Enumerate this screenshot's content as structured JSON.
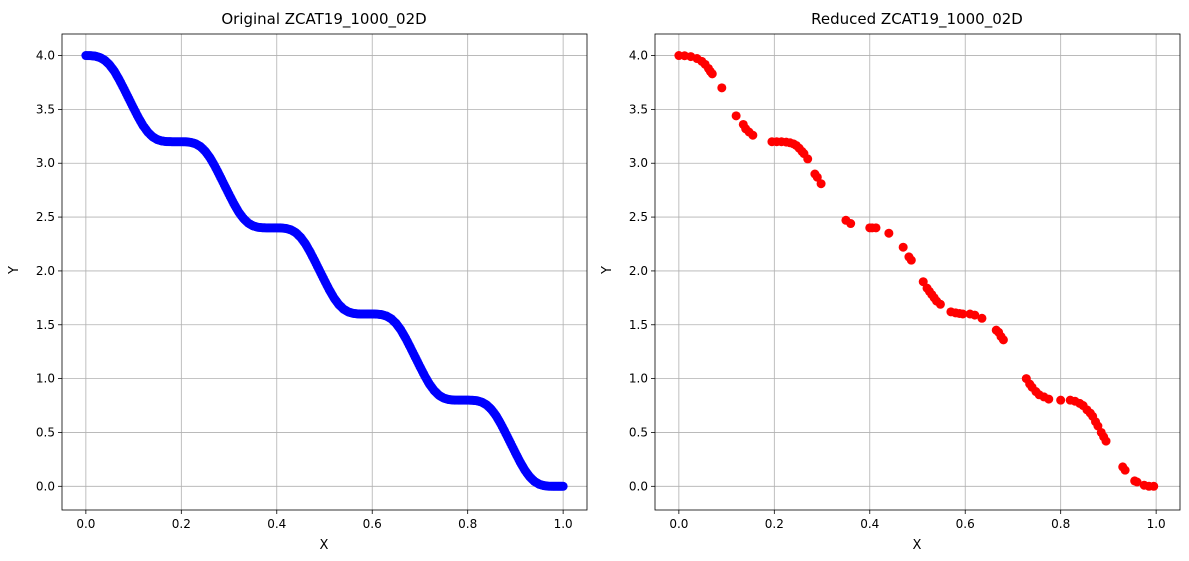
{
  "chart_data": [
    {
      "type": "scatter",
      "title": "Original ZCAT19_1000_02D",
      "xlabel": "X",
      "ylabel": "Y",
      "xlim": [
        -0.05,
        1.05
      ],
      "ylim": [
        -0.22,
        4.2
      ],
      "xticks": [
        "0.0",
        "0.2",
        "0.4",
        "0.6",
        "0.8",
        "1.0"
      ],
      "yticks": [
        "0.0",
        "0.5",
        "1.0",
        "1.5",
        "2.0",
        "2.5",
        "3.0",
        "3.5",
        "4.0"
      ],
      "grid": true,
      "series": [
        {
          "color": "#0000ff",
          "points": [
            [
              0.0,
              4.0
            ],
            [
              0.01,
              3.999
            ],
            [
              0.02,
              3.994
            ],
            [
              0.03,
              3.981
            ],
            [
              0.04,
              3.955
            ],
            [
              0.05,
              3.912
            ],
            [
              0.06,
              3.852
            ],
            [
              0.07,
              3.775
            ],
            [
              0.08,
              3.689
            ],
            [
              0.09,
              3.6
            ],
            [
              0.1,
              3.511
            ],
            [
              0.11,
              3.425
            ],
            [
              0.12,
              3.348
            ],
            [
              0.13,
              3.288
            ],
            [
              0.14,
              3.245
            ],
            [
              0.15,
              3.219
            ],
            [
              0.16,
              3.206
            ],
            [
              0.17,
              3.201
            ],
            [
              0.18,
              3.2
            ],
            [
              0.19,
              3.2
            ],
            [
              0.2,
              3.2
            ],
            [
              0.21,
              3.199
            ],
            [
              0.22,
              3.194
            ],
            [
              0.23,
              3.181
            ],
            [
              0.24,
              3.155
            ],
            [
              0.25,
              3.112
            ],
            [
              0.26,
              3.052
            ],
            [
              0.27,
              2.975
            ],
            [
              0.28,
              2.889
            ],
            [
              0.29,
              2.8
            ],
            [
              0.3,
              2.711
            ],
            [
              0.31,
              2.625
            ],
            [
              0.32,
              2.548
            ],
            [
              0.33,
              2.488
            ],
            [
              0.34,
              2.445
            ],
            [
              0.35,
              2.419
            ],
            [
              0.36,
              2.406
            ],
            [
              0.37,
              2.401
            ],
            [
              0.38,
              2.4
            ],
            [
              0.39,
              2.4
            ],
            [
              0.4,
              2.4
            ],
            [
              0.41,
              2.399
            ],
            [
              0.42,
              2.394
            ],
            [
              0.43,
              2.381
            ],
            [
              0.44,
              2.355
            ],
            [
              0.45,
              2.312
            ],
            [
              0.46,
              2.252
            ],
            [
              0.47,
              2.175
            ],
            [
              0.48,
              2.089
            ],
            [
              0.49,
              2.0
            ],
            [
              0.5,
              1.911
            ],
            [
              0.51,
              1.825
            ],
            [
              0.52,
              1.748
            ],
            [
              0.53,
              1.688
            ],
            [
              0.54,
              1.645
            ],
            [
              0.55,
              1.619
            ],
            [
              0.56,
              1.606
            ],
            [
              0.57,
              1.601
            ],
            [
              0.58,
              1.6
            ],
            [
              0.59,
              1.6
            ],
            [
              0.6,
              1.6
            ],
            [
              0.61,
              1.599
            ],
            [
              0.62,
              1.594
            ],
            [
              0.63,
              1.581
            ],
            [
              0.64,
              1.555
            ],
            [
              0.65,
              1.512
            ],
            [
              0.66,
              1.452
            ],
            [
              0.67,
              1.375
            ],
            [
              0.68,
              1.289
            ],
            [
              0.69,
              1.2
            ],
            [
              0.7,
              1.111
            ],
            [
              0.71,
              1.025
            ],
            [
              0.72,
              0.948
            ],
            [
              0.73,
              0.888
            ],
            [
              0.74,
              0.845
            ],
            [
              0.75,
              0.819
            ],
            [
              0.76,
              0.806
            ],
            [
              0.77,
              0.801
            ],
            [
              0.78,
              0.8
            ],
            [
              0.79,
              0.8
            ],
            [
              0.8,
              0.8
            ],
            [
              0.81,
              0.799
            ],
            [
              0.82,
              0.794
            ],
            [
              0.83,
              0.781
            ],
            [
              0.84,
              0.755
            ],
            [
              0.85,
              0.712
            ],
            [
              0.86,
              0.652
            ],
            [
              0.87,
              0.575
            ],
            [
              0.88,
              0.489
            ],
            [
              0.89,
              0.4
            ],
            [
              0.9,
              0.311
            ],
            [
              0.91,
              0.225
            ],
            [
              0.92,
              0.148
            ],
            [
              0.93,
              0.088
            ],
            [
              0.94,
              0.045
            ],
            [
              0.95,
              0.019
            ],
            [
              0.96,
              0.006
            ],
            [
              0.97,
              0.001
            ],
            [
              0.98,
              0.0
            ],
            [
              0.99,
              0.0
            ],
            [
              1.0,
              0.0
            ]
          ]
        }
      ]
    },
    {
      "type": "scatter",
      "title": "Reduced ZCAT19_1000_02D",
      "xlabel": "X",
      "ylabel": "Y",
      "xlim": [
        -0.05,
        1.05
      ],
      "ylim": [
        -0.22,
        4.2
      ],
      "xticks": [
        "0.0",
        "0.2",
        "0.4",
        "0.6",
        "0.8",
        "1.0"
      ],
      "yticks": [
        "0.0",
        "0.5",
        "1.0",
        "1.5",
        "2.0",
        "2.5",
        "3.0",
        "3.5",
        "4.0"
      ],
      "grid": true,
      "series": [
        {
          "color": "#ff0000",
          "points": [
            [
              0.0,
              4.0
            ],
            [
              0.012,
              3.998
            ],
            [
              0.025,
              3.99
            ],
            [
              0.038,
              3.972
            ],
            [
              0.048,
              3.946
            ],
            [
              0.055,
              3.918
            ],
            [
              0.062,
              3.88
            ],
            [
              0.066,
              3.852
            ],
            [
              0.07,
              3.83
            ],
            [
              0.09,
              3.7
            ],
            [
              0.12,
              3.44
            ],
            [
              0.135,
              3.36
            ],
            [
              0.14,
              3.32
            ],
            [
              0.147,
              3.29
            ],
            [
              0.155,
              3.26
            ],
            [
              0.195,
              3.2
            ],
            [
              0.205,
              3.2
            ],
            [
              0.215,
              3.2
            ],
            [
              0.225,
              3.196
            ],
            [
              0.233,
              3.19
            ],
            [
              0.24,
              3.18
            ],
            [
              0.246,
              3.165
            ],
            [
              0.252,
              3.14
            ],
            [
              0.258,
              3.11
            ],
            [
              0.262,
              3.09
            ],
            [
              0.27,
              3.04
            ],
            [
              0.285,
              2.9
            ],
            [
              0.29,
              2.87
            ],
            [
              0.298,
              2.81
            ],
            [
              0.35,
              2.47
            ],
            [
              0.36,
              2.44
            ],
            [
              0.4,
              2.4
            ],
            [
              0.405,
              2.4
            ],
            [
              0.413,
              2.4
            ],
            [
              0.44,
              2.35
            ],
            [
              0.47,
              2.22
            ],
            [
              0.482,
              2.13
            ],
            [
              0.487,
              2.1
            ],
            [
              0.512,
              1.9
            ],
            [
              0.52,
              1.84
            ],
            [
              0.525,
              1.81
            ],
            [
              0.53,
              1.78
            ],
            [
              0.535,
              1.75
            ],
            [
              0.54,
              1.72
            ],
            [
              0.548,
              1.69
            ],
            [
              0.57,
              1.62
            ],
            [
              0.58,
              1.61
            ],
            [
              0.588,
              1.605
            ],
            [
              0.595,
              1.6
            ],
            [
              0.61,
              1.6
            ],
            [
              0.62,
              1.59
            ],
            [
              0.635,
              1.56
            ],
            [
              0.665,
              1.45
            ],
            [
              0.67,
              1.43
            ],
            [
              0.675,
              1.39
            ],
            [
              0.68,
              1.36
            ],
            [
              0.728,
              1.0
            ],
            [
              0.735,
              0.95
            ],
            [
              0.74,
              0.92
            ],
            [
              0.748,
              0.88
            ],
            [
              0.755,
              0.85
            ],
            [
              0.765,
              0.83
            ],
            [
              0.775,
              0.81
            ],
            [
              0.8,
              0.8
            ],
            [
              0.82,
              0.8
            ],
            [
              0.83,
              0.79
            ],
            [
              0.84,
              0.77
            ],
            [
              0.847,
              0.75
            ],
            [
              0.855,
              0.71
            ],
            [
              0.862,
              0.68
            ],
            [
              0.867,
              0.65
            ],
            [
              0.873,
              0.6
            ],
            [
              0.878,
              0.56
            ],
            [
              0.885,
              0.5
            ],
            [
              0.89,
              0.46
            ],
            [
              0.895,
              0.42
            ],
            [
              0.93,
              0.18
            ],
            [
              0.935,
              0.15
            ],
            [
              0.955,
              0.05
            ],
            [
              0.96,
              0.04
            ],
            [
              0.975,
              0.01
            ],
            [
              0.985,
              0.0
            ],
            [
              0.995,
              0.0
            ]
          ]
        }
      ]
    }
  ]
}
